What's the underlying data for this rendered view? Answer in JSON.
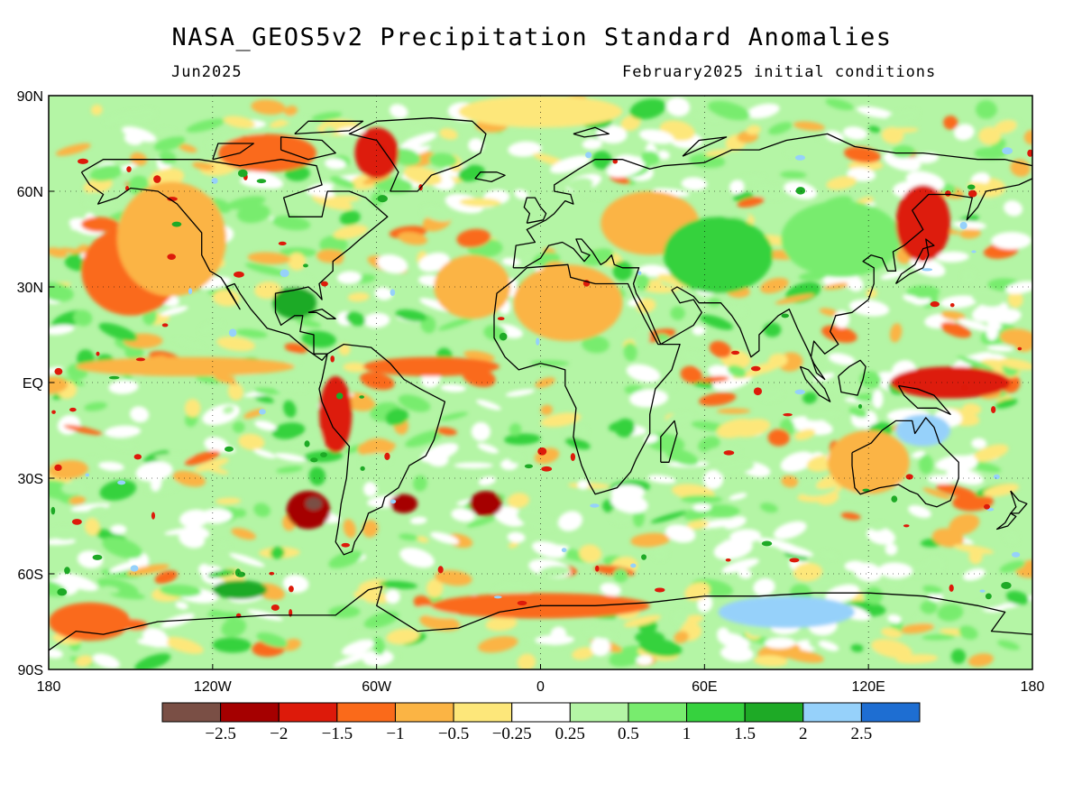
{
  "title": "NASA_GEOS5v2 Precipitation Standard Anomalies",
  "subtitle_left": "Jun2025",
  "subtitle_right": "February2025 initial conditions",
  "map": {
    "projection": "equirectangular",
    "lon_range": [
      -180,
      180
    ],
    "lat_range": [
      -90,
      90
    ],
    "lat_ticks": [
      "90N",
      "60N",
      "30N",
      "EQ",
      "30S",
      "60S",
      "90S"
    ],
    "lon_ticks": [
      "180",
      "120W",
      "60W",
      "0",
      "60E",
      "120E",
      "180"
    ],
    "coastlines": true,
    "gridlines": "dotted"
  },
  "legend": {
    "colors": [
      "#7a4f45",
      "#a50000",
      "#dd1a0a",
      "#fa6a1a",
      "#fbb444",
      "#fde77a",
      "#ffffff",
      "#b4f5a5",
      "#78ec6e",
      "#36d23e",
      "#1eaa26",
      "#96d1fa",
      "#1e6ed2"
    ],
    "labels": [
      "−2.5",
      "−2",
      "−1.5",
      "−1",
      "−0.5",
      "−0.25",
      "0.25",
      "0.5",
      "1",
      "1.5",
      "2",
      "2.5"
    ]
  },
  "regions": [
    {
      "lon": -150,
      "lat": 35,
      "value": -1.0,
      "rx": 18,
      "ry": 14
    },
    {
      "lon": -135,
      "lat": 45,
      "value": -0.5,
      "rx": 20,
      "ry": 18
    },
    {
      "lon": -100,
      "lat": 72,
      "value": -1.0,
      "rx": 18,
      "ry": 6
    },
    {
      "lon": -60,
      "lat": 72,
      "value": -1.5,
      "rx": 8,
      "ry": 8
    },
    {
      "lon": -90,
      "lat": 25,
      "value": 2.0,
      "rx": 8,
      "ry": 5
    },
    {
      "lon": -25,
      "lat": 30,
      "value": -0.5,
      "rx": 14,
      "ry": 10
    },
    {
      "lon": -40,
      "lat": 5,
      "value": -1.0,
      "rx": 25,
      "ry": 3
    },
    {
      "lon": -130,
      "lat": 5,
      "value": -0.5,
      "rx": 40,
      "ry": 3
    },
    {
      "lon": -75,
      "lat": -10,
      "value": -1.5,
      "rx": 6,
      "ry": 12
    },
    {
      "lon": -85,
      "lat": -40,
      "value": -2.0,
      "rx": 8,
      "ry": 6
    },
    {
      "lon": -83,
      "lat": -38,
      "value": -2.5,
      "rx": 3,
      "ry": 2
    },
    {
      "lon": -50,
      "lat": -38,
      "value": -2.0,
      "rx": 5,
      "ry": 3
    },
    {
      "lon": -20,
      "lat": -38,
      "value": -2.0,
      "rx": 6,
      "ry": 4
    },
    {
      "lon": 10,
      "lat": 25,
      "value": -0.5,
      "rx": 20,
      "ry": 12
    },
    {
      "lon": 40,
      "lat": 50,
      "value": -0.5,
      "rx": 18,
      "ry": 10
    },
    {
      "lon": 65,
      "lat": 40,
      "value": 1.5,
      "rx": 20,
      "ry": 12
    },
    {
      "lon": 110,
      "lat": 45,
      "value": 1.0,
      "rx": 22,
      "ry": 12
    },
    {
      "lon": 140,
      "lat": 50,
      "value": -1.5,
      "rx": 10,
      "ry": 12
    },
    {
      "lon": 150,
      "lat": 0,
      "value": -1.5,
      "rx": 22,
      "ry": 5
    },
    {
      "lon": 140,
      "lat": -15,
      "value": 2.5,
      "rx": 10,
      "ry": 5
    },
    {
      "lon": 120,
      "lat": -25,
      "value": -0.5,
      "rx": 15,
      "ry": 10
    },
    {
      "lon": 90,
      "lat": -72,
      "value": 2.5,
      "rx": 25,
      "ry": 5
    },
    {
      "lon": -110,
      "lat": -65,
      "value": 2.0,
      "rx": 10,
      "ry": 3
    },
    {
      "lon": -165,
      "lat": -75,
      "value": -1.0,
      "rx": 15,
      "ry": 6
    },
    {
      "lon": 0,
      "lat": -70,
      "value": -1.0,
      "rx": 40,
      "ry": 4
    },
    {
      "lon": 0,
      "lat": 85,
      "value": -0.25,
      "rx": 30,
      "ry": 5
    }
  ]
}
